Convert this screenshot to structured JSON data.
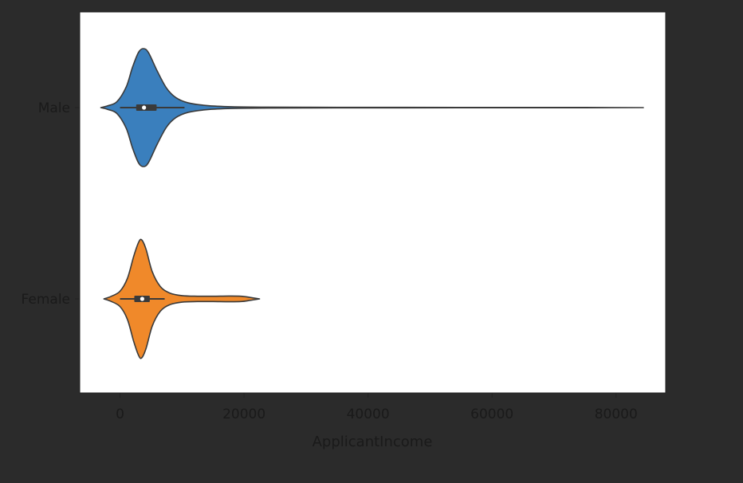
{
  "chart_data": {
    "type": "violin",
    "orientation": "horizontal",
    "title": "",
    "xlabel": "ApplicantIncome",
    "ylabel": "",
    "xlim": [
      -6500,
      88000
    ],
    "xticks": [
      0,
      20000,
      40000,
      60000,
      80000
    ],
    "xtick_labels": [
      "0",
      "20000",
      "40000",
      "60000",
      "80000"
    ],
    "grid": false,
    "legend": "none",
    "background": "#2b2b2b",
    "plot_background": "#ffffff",
    "categories": [
      "Male",
      "Female"
    ],
    "series": [
      {
        "category": "Male",
        "color": "#3a7fbd",
        "min": 150,
        "q1": 2600,
        "median": 3870,
        "q3": 5900,
        "whisker_low": 0,
        "whisker_high": 10400,
        "max": 81000,
        "kde_extent": [
          -3100,
          84400
        ],
        "density_profile": [
          {
            "x": -3100,
            "w": 0.0
          },
          {
            "x": -2000,
            "w": 0.03
          },
          {
            "x": -500,
            "w": 0.1
          },
          {
            "x": 1000,
            "w": 0.35
          },
          {
            "x": 2000,
            "w": 0.68
          },
          {
            "x": 3000,
            "w": 0.94
          },
          {
            "x": 3800,
            "w": 1.0
          },
          {
            "x": 4600,
            "w": 0.93
          },
          {
            "x": 6000,
            "w": 0.62
          },
          {
            "x": 7500,
            "w": 0.33
          },
          {
            "x": 9000,
            "w": 0.17
          },
          {
            "x": 11000,
            "w": 0.08
          },
          {
            "x": 14000,
            "w": 0.035
          },
          {
            "x": 18000,
            "w": 0.015
          },
          {
            "x": 24000,
            "w": 0.008
          },
          {
            "x": 35000,
            "w": 0.005
          },
          {
            "x": 45000,
            "w": 0.004
          },
          {
            "x": 60000,
            "w": 0.003
          },
          {
            "x": 75000,
            "w": 0.003
          },
          {
            "x": 84400,
            "w": 0.0
          }
        ]
      },
      {
        "category": "Female",
        "color": "#f0892a",
        "min": 210,
        "q1": 2300,
        "median": 3580,
        "q3": 4800,
        "whisker_low": 0,
        "whisker_high": 7200,
        "max": 19500,
        "kde_extent": [
          -2600,
          22500
        ],
        "density_profile": [
          {
            "x": -2600,
            "w": 0.0
          },
          {
            "x": -1500,
            "w": 0.04
          },
          {
            "x": 0,
            "w": 0.13
          },
          {
            "x": 1200,
            "w": 0.35
          },
          {
            "x": 2200,
            "w": 0.72
          },
          {
            "x": 3000,
            "w": 0.96
          },
          {
            "x": 3500,
            "w": 1.0
          },
          {
            "x": 4200,
            "w": 0.84
          },
          {
            "x": 5200,
            "w": 0.46
          },
          {
            "x": 6500,
            "w": 0.21
          },
          {
            "x": 8000,
            "w": 0.1
          },
          {
            "x": 10000,
            "w": 0.055
          },
          {
            "x": 12500,
            "w": 0.045
          },
          {
            "x": 15000,
            "w": 0.045
          },
          {
            "x": 17500,
            "w": 0.048
          },
          {
            "x": 19500,
            "w": 0.045
          },
          {
            "x": 21000,
            "w": 0.025
          },
          {
            "x": 22500,
            "w": 0.0
          }
        ]
      }
    ]
  }
}
